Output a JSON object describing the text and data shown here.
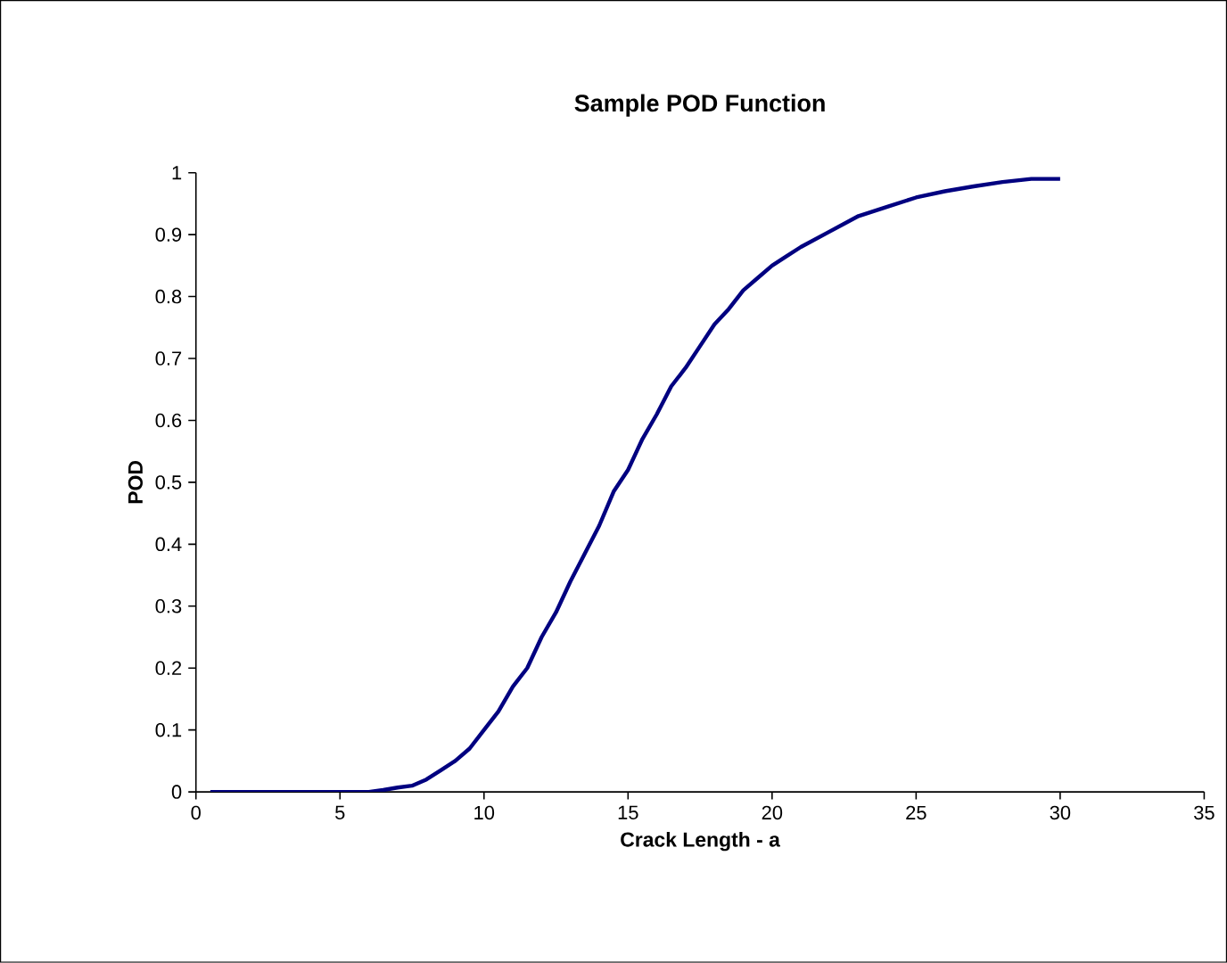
{
  "chart_data": {
    "type": "line",
    "title": "Sample POD Function",
    "xlabel": "Crack Length - a",
    "ylabel": "POD",
    "xlim": [
      0,
      35
    ],
    "xticks": [
      0,
      5,
      10,
      15,
      20,
      25,
      30,
      35
    ],
    "ylim": [
      0,
      1
    ],
    "yticks": [
      0,
      0.1,
      0.2,
      0.3,
      0.4,
      0.5,
      0.6,
      0.7,
      0.8,
      0.9,
      1
    ],
    "marker": "none",
    "line_style": "solid",
    "series": [
      {
        "color": "#000080",
        "x": [
          0.5,
          2,
          4,
          6,
          6.5,
          7,
          7.5,
          8,
          8.5,
          9,
          9.5,
          10,
          10.5,
          11,
          11.5,
          12,
          12.5,
          13,
          13.5,
          14,
          14.5,
          15,
          15.5,
          16,
          16.5,
          17,
          17.5,
          18,
          18.5,
          19,
          19.5,
          20,
          20.5,
          21,
          22,
          23,
          24,
          25,
          26,
          27,
          28,
          29,
          30
        ],
        "values": [
          0,
          0,
          0,
          0,
          0.003,
          0.007,
          0.01,
          0.02,
          0.035,
          0.05,
          0.07,
          0.1,
          0.13,
          0.17,
          0.2,
          0.25,
          0.29,
          0.34,
          0.385,
          0.43,
          0.485,
          0.52,
          0.57,
          0.61,
          0.655,
          0.685,
          0.72,
          0.755,
          0.78,
          0.81,
          0.83,
          0.85,
          0.865,
          0.88,
          0.905,
          0.93,
          0.945,
          0.96,
          0.97,
          0.978,
          0.985,
          0.99,
          0.99
        ]
      }
    ]
  }
}
